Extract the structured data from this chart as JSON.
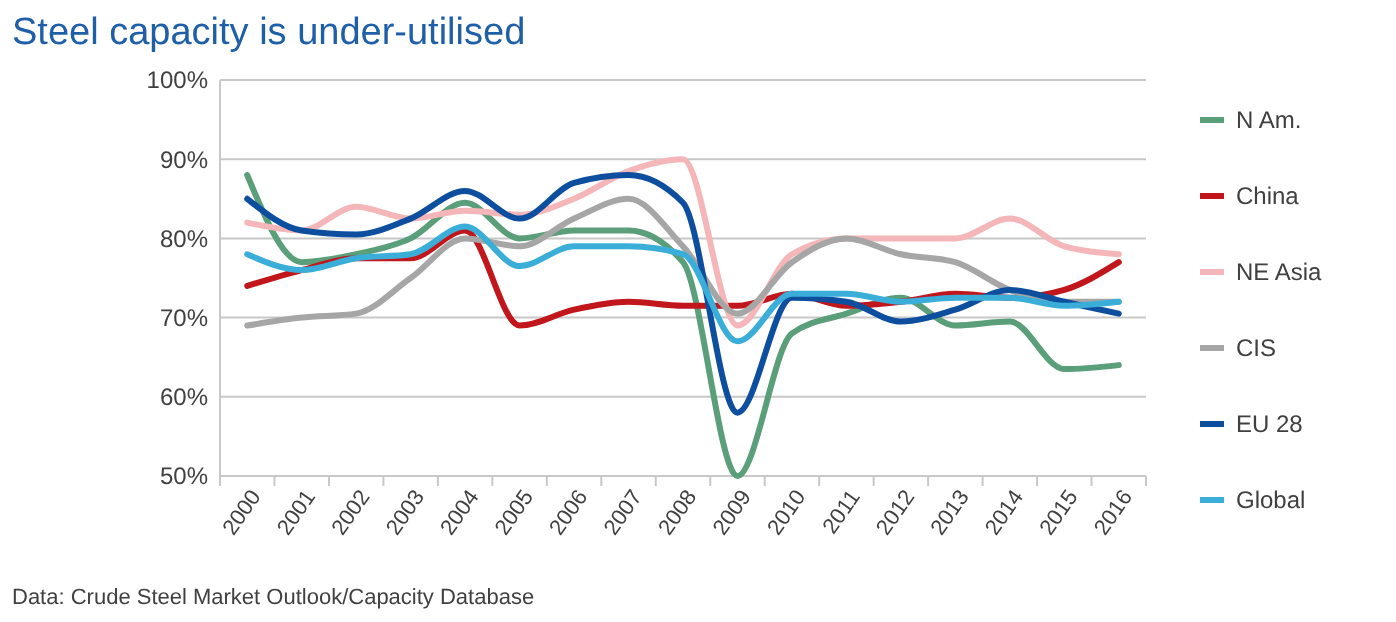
{
  "chart_data": {
    "type": "line",
    "title": "Steel capacity is under-utilised",
    "categories": [
      "2000",
      "2001",
      "2002",
      "2003",
      "2004",
      "2005",
      "2006",
      "2007",
      "2008",
      "2009",
      "2010",
      "2011",
      "2012",
      "2013",
      "2014",
      "2015",
      "2016"
    ],
    "series": [
      {
        "name": "N Am.",
        "color": "#5b9e7a",
        "values": [
          88,
          77,
          78,
          80,
          84.5,
          80,
          81,
          81,
          77,
          50,
          68,
          70.5,
          72.5,
          69,
          69.5,
          63.5,
          64
        ]
      },
      {
        "name": "China",
        "color": "#c0161c",
        "values": [
          74,
          76,
          77.5,
          77.5,
          81,
          69,
          71,
          72,
          71.5,
          71.5,
          73,
          71.5,
          72,
          73,
          72.5,
          73.5,
          77
        ]
      },
      {
        "name": "NE Asia",
        "color": "#f4b6b8",
        "values": [
          82,
          81,
          84,
          82.5,
          83.5,
          83,
          85,
          88.5,
          90,
          69,
          78,
          80,
          80,
          80,
          82.5,
          79,
          78
        ]
      },
      {
        "name": "CIS",
        "color": "#a6a6a6",
        "values": [
          69,
          70,
          70.5,
          75,
          80,
          79,
          82.5,
          85,
          79,
          70.5,
          77,
          80,
          78,
          77,
          73.5,
          72,
          72
        ]
      },
      {
        "name": "EU 28",
        "color": "#0d4f9e",
        "values": [
          85,
          81,
          80.5,
          82.5,
          86,
          82.5,
          87,
          88,
          84.5,
          58,
          72.5,
          72,
          69.5,
          71,
          73.5,
          72,
          70.5
        ]
      },
      {
        "name": "Global",
        "color": "#3aaed8",
        "values": [
          78,
          76,
          77.5,
          78,
          81.5,
          76.5,
          79,
          79,
          78,
          67,
          73,
          73,
          72,
          72.5,
          72.5,
          71.5,
          72
        ]
      }
    ],
    "ylim": [
      50,
      100
    ],
    "yticks": [
      {
        "value": 50,
        "label": "50%"
      },
      {
        "value": 60,
        "label": "60%"
      },
      {
        "value": 70,
        "label": "70%"
      },
      {
        "value": 80,
        "label": "80%"
      },
      {
        "value": 90,
        "label": "90%"
      },
      {
        "value": 100,
        "label": "100%"
      }
    ],
    "grid": "y",
    "legend": "right",
    "marker": "none",
    "line_style": "solid",
    "annotations": [
      "Data: Crude Steel Market Outlook/Capacity Database"
    ]
  }
}
